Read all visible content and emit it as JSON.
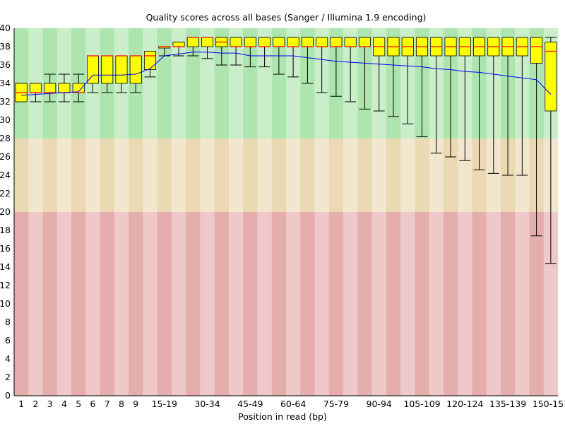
{
  "chart_data": {
    "type": "boxplot",
    "title": "Quality scores across all bases (Sanger / Illumina 1.9 encoding)",
    "xlabel": "Position in read (bp)",
    "ylabel": "",
    "ylim": [
      0,
      40
    ],
    "yticks": [
      0,
      2,
      4,
      6,
      8,
      10,
      12,
      14,
      16,
      18,
      20,
      22,
      24,
      26,
      28,
      30,
      32,
      34,
      36,
      38,
      40
    ],
    "grid": false,
    "bands": [
      {
        "from": 28,
        "to": 40,
        "color": "#aee5ae"
      },
      {
        "from": 20,
        "to": 28,
        "color": "#ebd9b4"
      },
      {
        "from": 0,
        "to": 20,
        "color": "#e6adad"
      }
    ],
    "colors": {
      "box": "#ffff00",
      "median": "#ff0000",
      "mean": "#0000ff",
      "whisker": "#000000"
    },
    "categories": [
      "1",
      "2",
      "3",
      "4",
      "5",
      "6",
      "7",
      "8",
      "9",
      "10-14",
      "15-19",
      "20-24",
      "25-29",
      "30-34",
      "35-39",
      "40-44",
      "45-49",
      "50-54",
      "55-59",
      "60-64",
      "65-69",
      "70-74",
      "75-79",
      "80-84",
      "85-89",
      "90-94",
      "95-99",
      "100-104",
      "105-109",
      "110-114",
      "115-119",
      "120-124",
      "125-129",
      "130-134",
      "135-139",
      "140-144",
      "145-149",
      "150-151"
    ],
    "xtick_labels": [
      "1",
      "2",
      "3",
      "4",
      "5",
      "6",
      "7",
      "8",
      "9",
      "",
      "15-19",
      "",
      "",
      "30-34",
      "",
      "",
      "45-49",
      "",
      "",
      "60-64",
      "",
      "",
      "75-79",
      "",
      "",
      "90-94",
      "",
      "",
      "105-109",
      "",
      "",
      "120-124",
      "",
      "",
      "135-139",
      "",
      "",
      "150-151"
    ],
    "series": [
      {
        "name": "median",
        "values": [
          33,
          33,
          33,
          33,
          33,
          37,
          37,
          37,
          37,
          37,
          38,
          38,
          39,
          39,
          38.5,
          38,
          38,
          38,
          38,
          38,
          38,
          38,
          38,
          38,
          38,
          38,
          38,
          38,
          38,
          38,
          38,
          38,
          38,
          38,
          38,
          38,
          38,
          37.5
        ]
      },
      {
        "name": "lower_quartile",
        "values": [
          32,
          33,
          33,
          33,
          33,
          34,
          34,
          34,
          34,
          35.5,
          38,
          38,
          38,
          38,
          38,
          38,
          38,
          38,
          38,
          38,
          38,
          38,
          38,
          38,
          38,
          37,
          37,
          37,
          37,
          37,
          37,
          37,
          37,
          37,
          37,
          37,
          36.2,
          31
        ]
      },
      {
        "name": "upper_quartile",
        "values": [
          34,
          34,
          34,
          34,
          34,
          37,
          37,
          37,
          37,
          37.5,
          38,
          38.5,
          39,
          39,
          39,
          39,
          39,
          39,
          39,
          39,
          39,
          39,
          39,
          39,
          39,
          39,
          39,
          39,
          39,
          39,
          39,
          39,
          39,
          39,
          39,
          39,
          39,
          38.5
        ]
      },
      {
        "name": "p10",
        "values": [
          32,
          32,
          32,
          32,
          32,
          33,
          33,
          33,
          33,
          34.7,
          37,
          37,
          37,
          36.7,
          36,
          36,
          35.8,
          35.8,
          35,
          34.7,
          34,
          33,
          32.6,
          32,
          31.2,
          31,
          30.4,
          29.6,
          28.2,
          26.4,
          26,
          25.6,
          24.6,
          24.2,
          24,
          24,
          17.4,
          14.4
        ]
      },
      {
        "name": "p90",
        "values": [
          34,
          34,
          35,
          35,
          35,
          35,
          35,
          35,
          35,
          36,
          38,
          38.5,
          39,
          39,
          39,
          39,
          39,
          39,
          39,
          39,
          39,
          39,
          39,
          39,
          39,
          39,
          39,
          39,
          39,
          39,
          39,
          39,
          39,
          39,
          39,
          39,
          39,
          39
        ]
      },
      {
        "name": "mean",
        "values": [
          32.7,
          32.8,
          32.9,
          33,
          33.1,
          34.9,
          34.9,
          34.9,
          35,
          35.6,
          37,
          37.2,
          37.4,
          37.4,
          37.3,
          37.3,
          37,
          37,
          37,
          37,
          36.8,
          36.6,
          36.4,
          36.3,
          36.2,
          36.1,
          36,
          35.9,
          35.8,
          35.6,
          35.5,
          35.3,
          35.2,
          35,
          34.8,
          34.6,
          34.4,
          32.8
        ]
      }
    ]
  }
}
